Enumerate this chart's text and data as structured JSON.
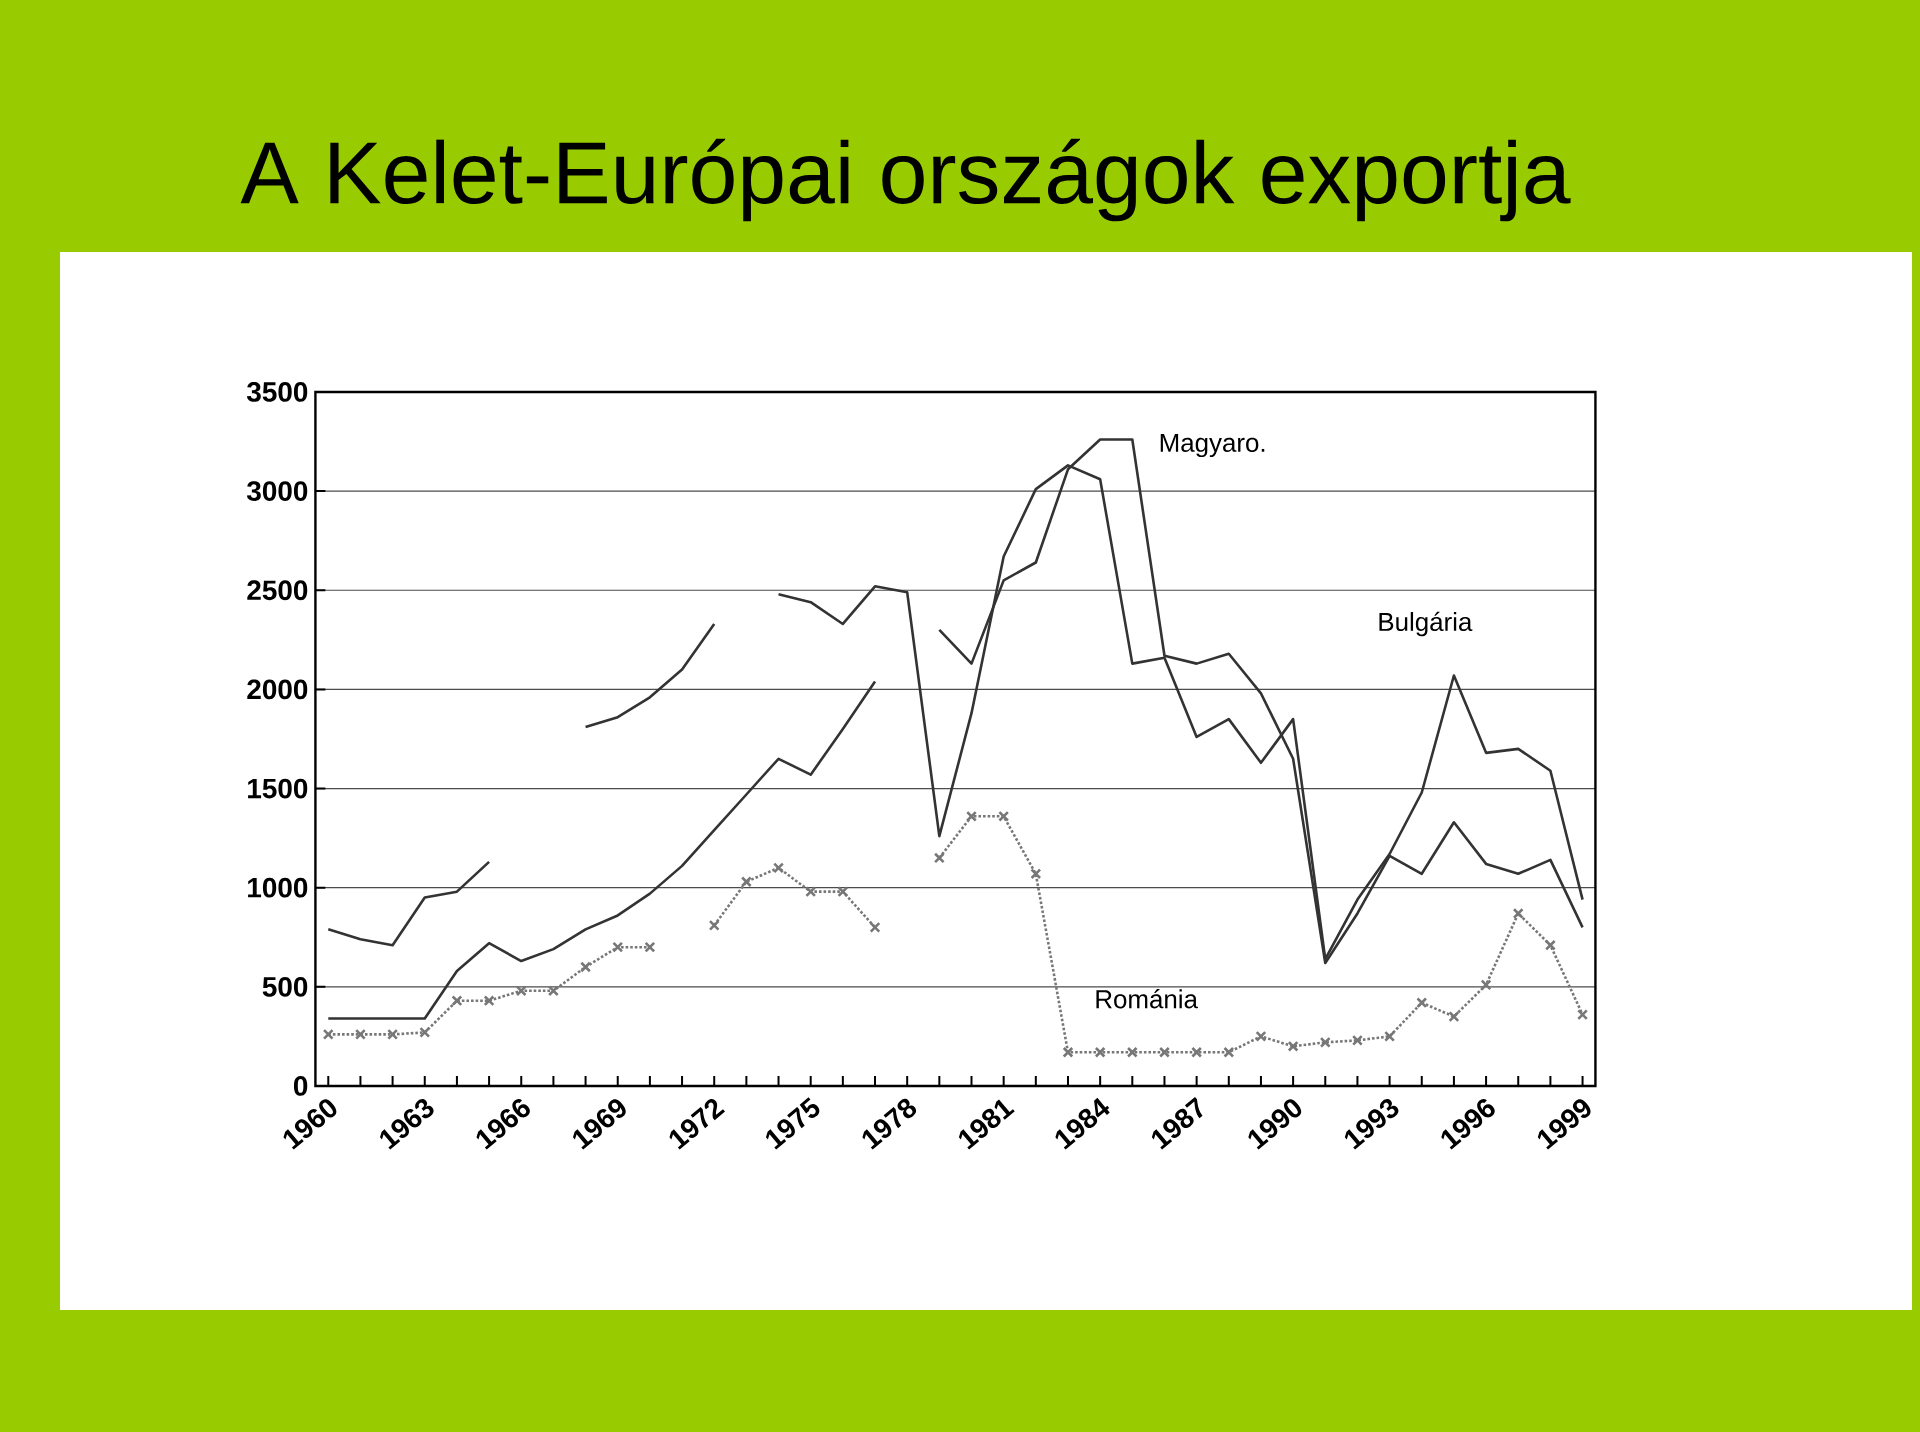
{
  "chart_data": {
    "type": "line",
    "title": "A Kelet-Európai országok exportja",
    "categories": [
      "1960",
      null,
      null,
      "1963",
      null,
      null,
      "1966",
      null,
      null,
      "1969",
      null,
      null,
      "1972",
      null,
      null,
      "1975",
      null,
      null,
      "1978",
      null,
      null,
      "1981",
      null,
      null,
      "1984",
      null,
      null,
      "1987",
      null,
      null,
      "1990",
      null,
      null,
      "1993",
      null,
      null,
      "1996",
      null,
      null,
      "1999"
    ],
    "series": [
      {
        "name": "Magyaro.",
        "color": "#333333",
        "marker": "none",
        "line_style": "solid",
        "values": [
          340,
          340,
          340,
          340,
          580,
          720,
          630,
          690,
          790,
          860,
          970,
          1110,
          1290,
          1470,
          1650,
          1570,
          1800,
          2040,
          null,
          2300,
          2130,
          2550,
          2640,
          3110,
          3260,
          3260,
          2170,
          2130,
          2180,
          1980,
          1650,
          620,
          870,
          1160,
          1070,
          1330,
          1120,
          1070,
          1140,
          800
        ]
      },
      {
        "name": "Bulgária",
        "color": "#333333",
        "marker": "none",
        "line_style": "solid",
        "values": [
          790,
          740,
          710,
          950,
          980,
          1130,
          null,
          null,
          1810,
          1860,
          1960,
          2100,
          2330,
          null,
          2480,
          2440,
          2330,
          2520,
          2490,
          1260,
          1880,
          2670,
          3010,
          3130,
          3060,
          2130,
          2160,
          1760,
          1850,
          1630,
          1850,
          640,
          940,
          1170,
          1480,
          2070,
          1680,
          1700,
          1590,
          940
        ]
      },
      {
        "name": "Románia",
        "color": "#777777",
        "marker": "cross",
        "line_style": "dotted",
        "values": [
          260,
          260,
          260,
          270,
          430,
          430,
          480,
          480,
          600,
          700,
          700,
          null,
          810,
          1030,
          1100,
          980,
          980,
          800,
          null,
          1150,
          1360,
          1360,
          1070,
          170,
          170,
          170,
          170,
          170,
          170,
          250,
          200,
          220,
          230,
          250,
          420,
          350,
          510,
          870,
          710,
          360
        ]
      }
    ],
    "ylim": [
      0,
      3500
    ],
    "yticks": [
      0,
      500,
      1000,
      1500,
      2000,
      2500,
      3000,
      3500
    ],
    "grid": "y"
  }
}
